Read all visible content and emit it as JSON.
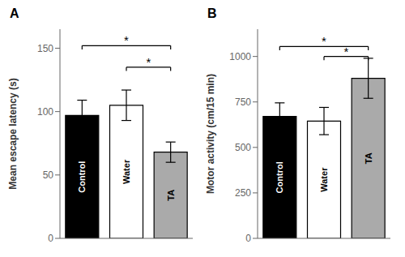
{
  "chart_data": [
    {
      "type": "bar",
      "title": "A",
      "categories": [
        "Control",
        "Water",
        "TA"
      ],
      "values": [
        97,
        105,
        68
      ],
      "errors": [
        12,
        12,
        8
      ],
      "colors": [
        "#000000",
        "#ffffff",
        "#aaaaaa"
      ],
      "ylabel": "Mean escape latency (s)",
      "ylim": [
        0,
        165
      ],
      "yticks": [
        0,
        50,
        100,
        150
      ],
      "grid": false,
      "tick_labels": "y",
      "annotations": [
        {
          "x1": "Control",
          "x2": "TA",
          "y": 152,
          "label": "*"
        },
        {
          "x1": "Water",
          "x2": "TA",
          "y": 135,
          "label": "*"
        }
      ]
    },
    {
      "type": "bar",
      "title": "B",
      "categories": [
        "Control",
        "Water",
        "TA"
      ],
      "values": [
        670,
        645,
        880
      ],
      "errors": [
        75,
        75,
        110
      ],
      "colors": [
        "#000000",
        "#ffffff",
        "#aaaaaa"
      ],
      "ylabel": "Motor activity (cm/15 min)",
      "ylim": [
        0,
        1150
      ],
      "yticks": [
        0,
        250,
        500,
        750,
        1000
      ],
      "grid": false,
      "tick_labels": "y",
      "annotations": [
        {
          "x1": "Control",
          "x2": "TA",
          "y": 1055,
          "label": "*"
        },
        {
          "x1": "Water",
          "x2": "TA",
          "y": 1000,
          "label": "*"
        }
      ]
    }
  ]
}
